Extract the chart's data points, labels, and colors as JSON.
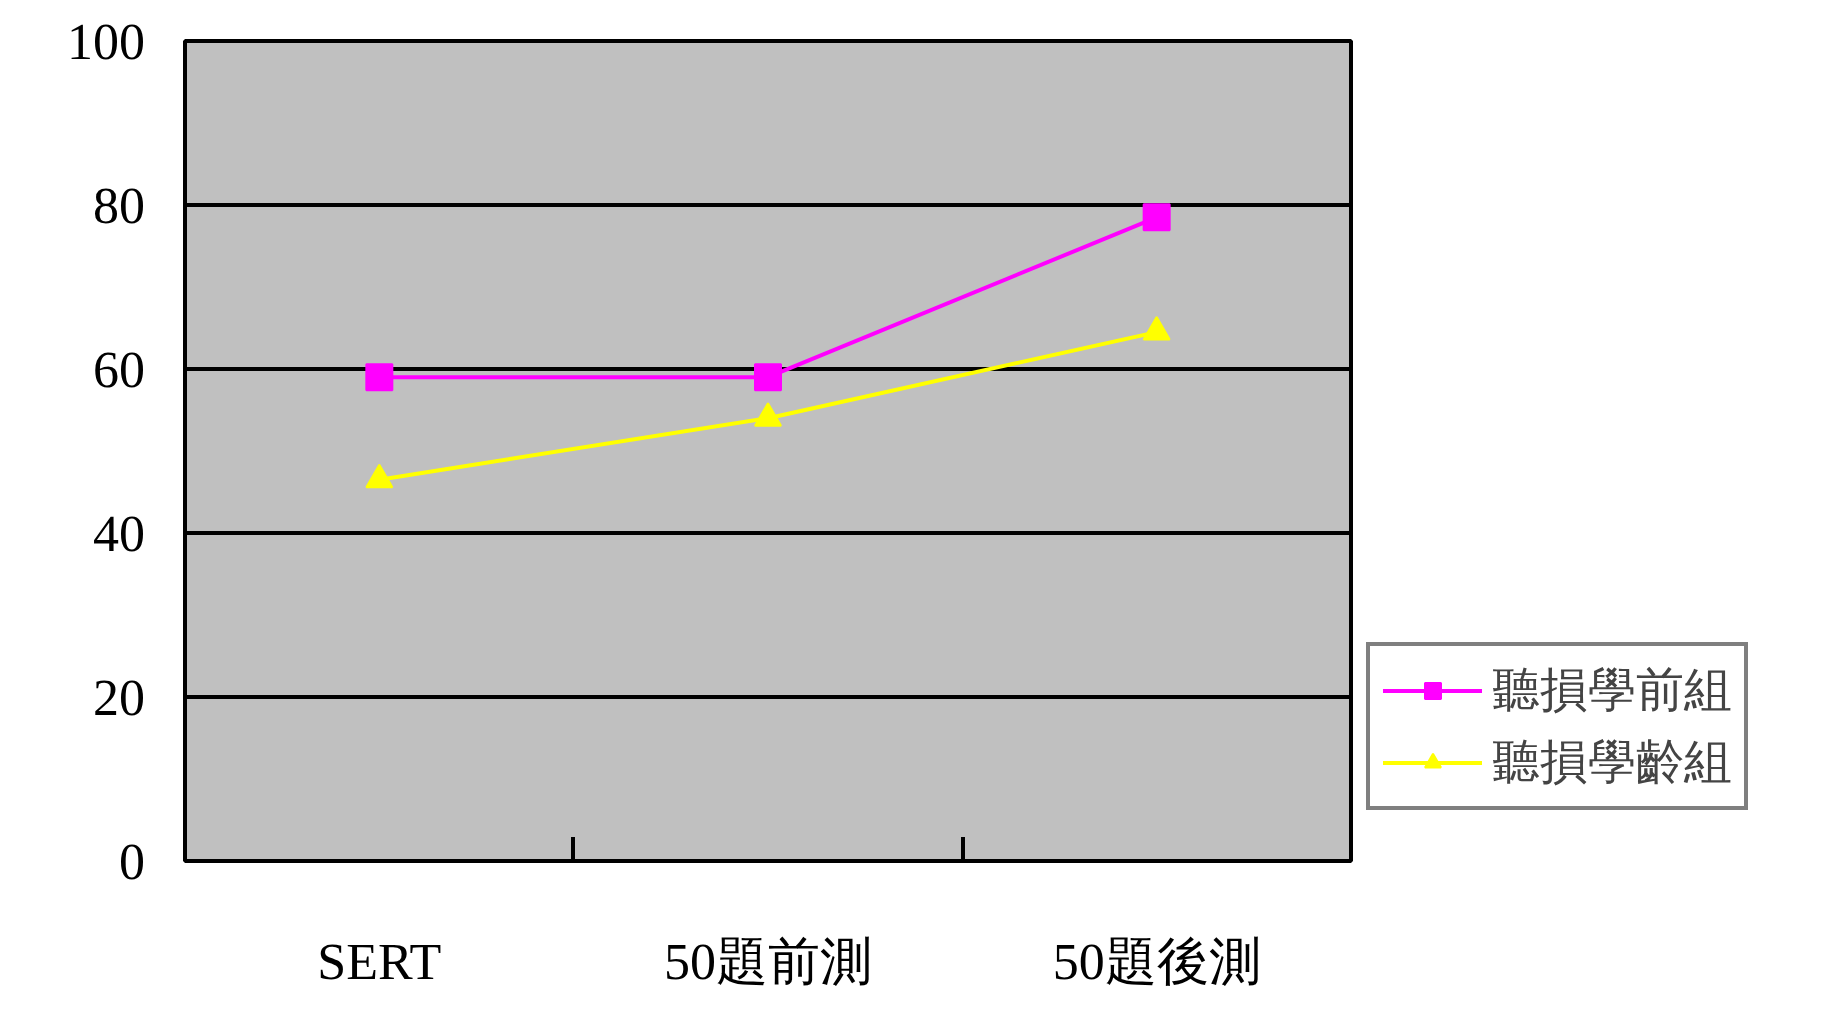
{
  "chart_data": {
    "type": "line",
    "categories": [
      "SERT",
      "50題前測",
      "50題後測"
    ],
    "series": [
      {
        "name": "聽損學前組",
        "color": "#ff00ff",
        "marker": "square",
        "values": [
          59,
          59,
          78.5
        ]
      },
      {
        "name": "聽損學齡組",
        "color": "#ffff00",
        "marker": "triangle",
        "values": [
          46.5,
          54,
          64.5
        ]
      }
    ],
    "ylim": [
      0,
      100
    ],
    "yticks": [
      0,
      20,
      40,
      60,
      80,
      100
    ],
    "grid": "y",
    "legend": "right"
  }
}
